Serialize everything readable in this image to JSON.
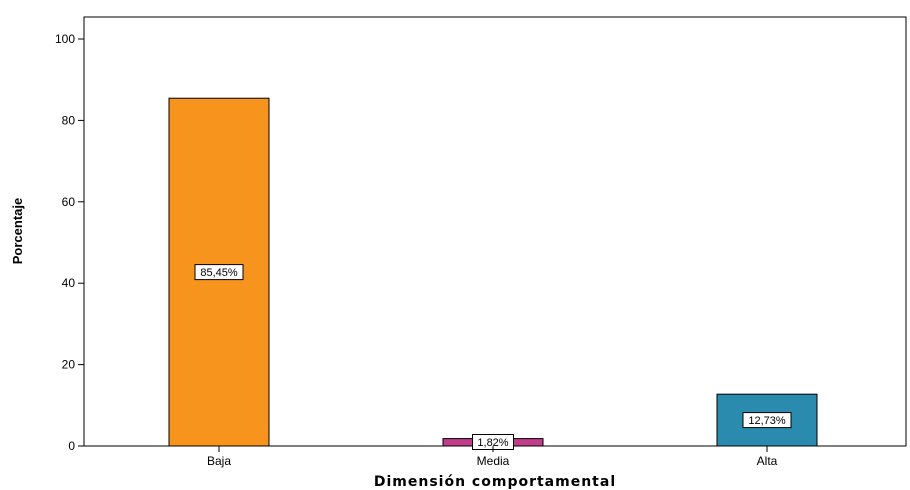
{
  "chart_data": {
    "type": "bar",
    "categories": [
      "Baja",
      "Media",
      "Alta"
    ],
    "values": [
      85.45,
      1.82,
      12.73
    ],
    "data_labels": [
      "85,45%",
      "1,82%",
      "12,73%"
    ],
    "colors": [
      "#F7941D",
      "#C13C8A",
      "#2A8BAE"
    ],
    "xlabel": "Dimensión comportamental",
    "ylabel": "Porcentaje",
    "ylim": [
      0,
      100
    ],
    "yticks": [
      0,
      20,
      40,
      60,
      80,
      100
    ],
    "grid": false
  }
}
